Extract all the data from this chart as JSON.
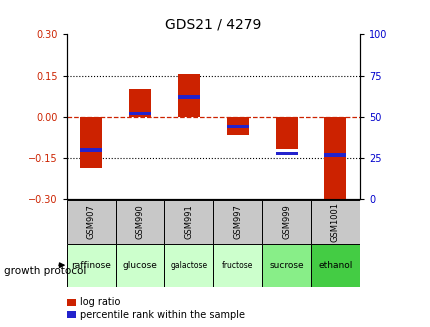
{
  "title": "GDS21 / 4279",
  "samples": [
    "GSM907",
    "GSM990",
    "GSM991",
    "GSM997",
    "GSM999",
    "GSM1001"
  ],
  "protocols": [
    "raffinose",
    "glucose",
    "galactose",
    "fructose",
    "sucrose",
    "ethanol"
  ],
  "log_ratios": [
    -0.185,
    0.1,
    0.155,
    -0.065,
    -0.115,
    -0.3
  ],
  "percentiles": [
    30,
    52,
    62,
    44,
    28,
    27
  ],
  "ylim_left": [
    -0.3,
    0.3
  ],
  "ylim_right": [
    0,
    100
  ],
  "yticks_left": [
    -0.3,
    -0.15,
    0,
    0.15,
    0.3
  ],
  "yticks_right": [
    0,
    25,
    50,
    75,
    100
  ],
  "log_color": "#cc2200",
  "pct_color": "#2222cc",
  "protocol_colors": [
    "#ccffcc",
    "#ccffcc",
    "#ccffcc",
    "#ccffcc",
    "#88ee88",
    "#44cc44"
  ],
  "legend_log": "log ratio",
  "legend_pct": "percentile rank within the sample",
  "growth_protocol_label": "growth protocol"
}
